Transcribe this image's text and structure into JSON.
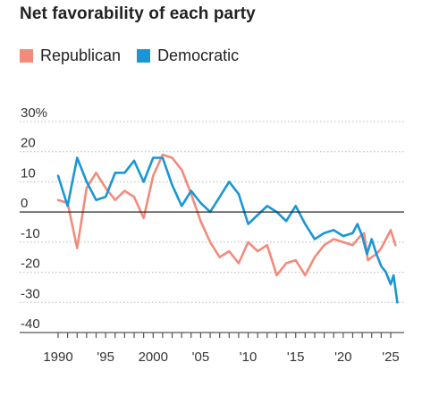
{
  "chart_data": {
    "type": "line",
    "title": "Net favorability of each party",
    "xlabel": "",
    "ylabel": "",
    "xlim": [
      1989,
      2026
    ],
    "ylim": [
      -40,
      30
    ],
    "y_ticks": [
      30,
      20,
      10,
      0,
      -10,
      -20,
      -30,
      -40
    ],
    "y_tick_labels": [
      "30%",
      "20",
      "10",
      "0",
      "-10",
      "-20",
      "-30",
      "-40"
    ],
    "x_ticks_labeled": [
      1990,
      1995,
      2000,
      2005,
      2010,
      2015,
      2020,
      2025
    ],
    "x_tick_labels": [
      "1990",
      "'95",
      "2000",
      "'05",
      "'10",
      "'15",
      "'20",
      "'25"
    ],
    "x_minor_ticks": [
      1990,
      1991,
      1992,
      1993,
      1994,
      1995,
      1996,
      1997,
      1998,
      1999,
      2000,
      2001,
      2002,
      2003,
      2004,
      2005,
      2006,
      2007,
      2008,
      2009,
      2010,
      2011,
      2012,
      2013,
      2014,
      2015,
      2016,
      2017,
      2018,
      2019,
      2020,
      2021,
      2022,
      2023,
      2024,
      2025
    ],
    "gridlines": "horizontal-dotted",
    "zero_line": true,
    "legend_position": "top-left",
    "series": [
      {
        "name": "Republican",
        "color": "#f28b7b",
        "x": [
          1990,
          1991,
          1992,
          1993,
          1994,
          1995,
          1996,
          1997,
          1998,
          1999,
          2000,
          2001,
          2002,
          2003,
          2004,
          2005,
          2006,
          2007,
          2008,
          2009,
          2010,
          2011,
          2012,
          2013,
          2014,
          2015,
          2016,
          2017,
          2018,
          2019,
          2020,
          2021,
          2021.8,
          2022.2,
          2022.6,
          2023,
          2023.5,
          2024,
          2024.5,
          2025,
          2025.5
        ],
        "y": [
          4,
          3,
          -12,
          8,
          13,
          8,
          4,
          7,
          5,
          -2,
          12,
          19,
          18,
          14,
          6,
          -3,
          -10,
          -15,
          -13,
          -17,
          -10,
          -13,
          -11,
          -21,
          -17,
          -16,
          -21,
          -15,
          -11,
          -9,
          -10,
          -11,
          -8,
          -7,
          -16,
          -15,
          -14,
          -12,
          -9,
          -6,
          -11
        ]
      },
      {
        "name": "Democratic",
        "color": "#1a96d4",
        "x": [
          1990,
          1991,
          1992,
          1993,
          1994,
          1995,
          1996,
          1997,
          1998,
          1999,
          2000,
          2001,
          2002,
          2003,
          2004,
          2005,
          2006,
          2007,
          2008,
          2009,
          2010,
          2011,
          2012,
          2013,
          2014,
          2015,
          2016,
          2017,
          2018,
          2019,
          2020,
          2021,
          2021.5,
          2022,
          2022.5,
          2023,
          2023.5,
          2024,
          2024.5,
          2025,
          2025.3,
          2025.7
        ],
        "y": [
          12,
          2,
          18,
          10,
          4,
          5,
          13,
          13,
          17,
          10,
          18,
          18,
          9,
          2,
          7,
          3,
          0,
          5,
          10,
          6,
          -4,
          -1,
          2,
          0,
          -3,
          2,
          -4,
          -9,
          -7,
          -6,
          -8,
          -7,
          -4,
          -8,
          -14,
          -9,
          -14,
          -18,
          -20,
          -24,
          -21,
          -30
        ]
      }
    ]
  }
}
